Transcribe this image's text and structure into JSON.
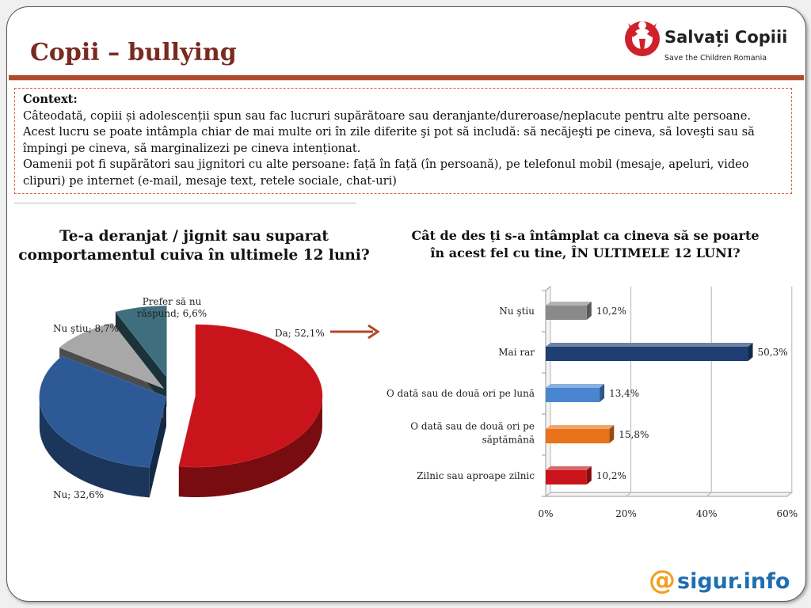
{
  "slide": {
    "title": "Copii – bullying",
    "brand": {
      "name": "Salvați Copiii",
      "subtitle": "Save the Children Romania",
      "color": "#d0202a"
    },
    "footer_brand": {
      "at": "@",
      "name": "sigur.info"
    }
  },
  "context": {
    "heading": "Context:",
    "paragraph1": "Câteodată, copiii și adolescenții spun sau fac lucruri supărătoare sau deranjante/dureroase/neplacute pentru alte persoane. Acest lucru se poate intâmpla chiar de mai multe ori în zile diferite şi pot să includă: să necăjeşti pe cineva, să loveşti sau să împingi pe cineva, să marginalizezi pe cineva intenționat.",
    "paragraph2": "Oamenii pot fi supărători sau jignitori cu alte persoane: față în față (în persoană), pe telefonul mobil (mesaje, apeluri, video clipuri) pe internet (e-mail, mesaje text, retele sociale, chat-uri)"
  },
  "chart_data": [
    {
      "type": "pie",
      "title": "Te-a deranjat / jignit sau suparat comportamentul cuiva în ultimele 12 luni?",
      "slices": [
        {
          "label": "Da; 52,1%",
          "name": "Da",
          "value": 52.1,
          "color": "#c8141a"
        },
        {
          "label": "Nu; 32,6%",
          "name": "Nu",
          "value": 32.6,
          "color": "#2d5a96"
        },
        {
          "label": "Nu ştiu; 8,7%",
          "name": "Nu ştiu",
          "value": 8.7,
          "color": "#a8a8a8"
        },
        {
          "label_line1": "Prefer să nu",
          "label_line2": "răspund; 6,6%",
          "name": "Prefer să nu răspund",
          "value": 6.6,
          "color": "#3f6f7e"
        }
      ]
    },
    {
      "type": "bar",
      "orientation": "horizontal",
      "title": "Cât de des ți s-a întâmplat ca cineva să se poarte în acest fel cu tine, ÎN ULTIMELE 12 LUNI?",
      "categories": [
        [
          "Nu ştiu"
        ],
        [
          "Mai rar"
        ],
        [
          "O dată sau de două ori pe lună"
        ],
        [
          "O dată sau de două ori pe",
          "săptămână"
        ],
        [
          "Zilnic sau aproape zilnic"
        ]
      ],
      "values": [
        10.2,
        50.3,
        13.4,
        15.8,
        10.2
      ],
      "value_labels": [
        "10,2%",
        "50,3%",
        "13,4%",
        "15,8%",
        "10,2%"
      ],
      "colors": [
        "#8a8a8a",
        "#1f3f73",
        "#4a86cf",
        "#e8731a",
        "#c8141a"
      ],
      "xlim": [
        0,
        60
      ],
      "xticks": [
        0,
        20,
        40,
        60
      ],
      "xtick_labels": [
        "0%",
        "20%",
        "40%",
        "60%"
      ],
      "grid": true
    }
  ]
}
